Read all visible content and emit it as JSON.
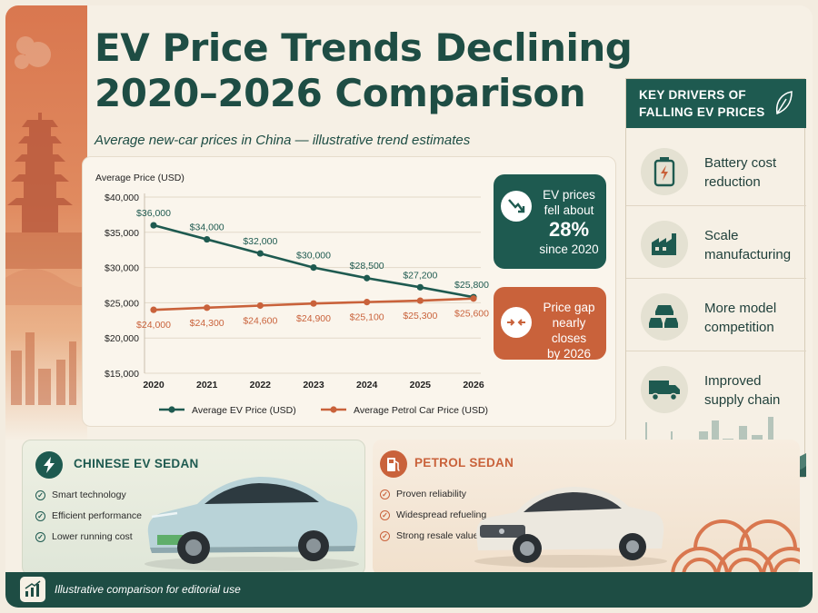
{
  "header": {
    "title_line1": "EV Price Trends Declining",
    "title_line2": "2020–2026 Comparison",
    "subtitle": "Average new-car prices in China — illustrative trend estimates"
  },
  "chart_data": {
    "type": "line",
    "ylabel": "Average Price (USD)",
    "xlabel": "",
    "categories": [
      "2020",
      "2021",
      "2022",
      "2023",
      "2024",
      "2025",
      "2026"
    ],
    "ylim": [
      15000,
      40000
    ],
    "yticks": [
      15000,
      20000,
      25000,
      30000,
      35000,
      40000
    ],
    "ytick_labels": [
      "$15,000",
      "$20,000",
      "$25,000",
      "$30,000",
      "$35,000",
      "$40,000"
    ],
    "grid": true,
    "legend_position": "bottom",
    "series": [
      {
        "name": "Average EV Price (USD)",
        "color": "#1e5a50",
        "values": [
          36000,
          34000,
          32000,
          30000,
          28500,
          27200,
          25800
        ],
        "labels": [
          "$36,000",
          "$34,000",
          "$32,000",
          "$30,000",
          "$28,500",
          "$27,200",
          "$25,800"
        ]
      },
      {
        "name": "Average Petrol Car Price (USD)",
        "color": "#c9623b",
        "values": [
          24000,
          24300,
          24600,
          24900,
          25100,
          25300,
          25600
        ],
        "labels": [
          "$24,000",
          "$24,300",
          "$24,600",
          "$24,900",
          "$25,100",
          "$25,300",
          "$25,600"
        ]
      }
    ]
  },
  "callouts": {
    "ev_line1": "EV prices",
    "ev_line2": "fell about",
    "ev_pct": "28%",
    "ev_line3": "since 2020",
    "gap_line1": "Price gap",
    "gap_line2": "nearly closes",
    "gap_line3": "by 2026"
  },
  "drivers": {
    "heading_line1": "KEY DRIVERS OF",
    "heading_line2": "FALLING EV PRICES",
    "items": [
      {
        "line1": "Battery cost",
        "line2": "reduction",
        "icon": "battery-icon"
      },
      {
        "line1": "Scale",
        "line2": "manufacturing",
        "icon": "factory-icon"
      },
      {
        "line1": "More model",
        "line2": "competition",
        "icon": "cars-icon"
      },
      {
        "line1": "Improved",
        "line2": "supply chain",
        "icon": "truck-icon"
      }
    ]
  },
  "ev_card": {
    "title": "CHINESE EV SEDAN",
    "features": [
      "Smart technology",
      "Efficient performance",
      "Lower running cost"
    ],
    "car_color": "#b9d3d8"
  },
  "petrol_card": {
    "title": "PETROL SEDAN",
    "features": [
      "Proven reliability",
      "Widespread refueling",
      "Strong resale value"
    ],
    "car_color": "#ece8df"
  },
  "footer": {
    "text": "Illustrative comparison for editorial use"
  }
}
